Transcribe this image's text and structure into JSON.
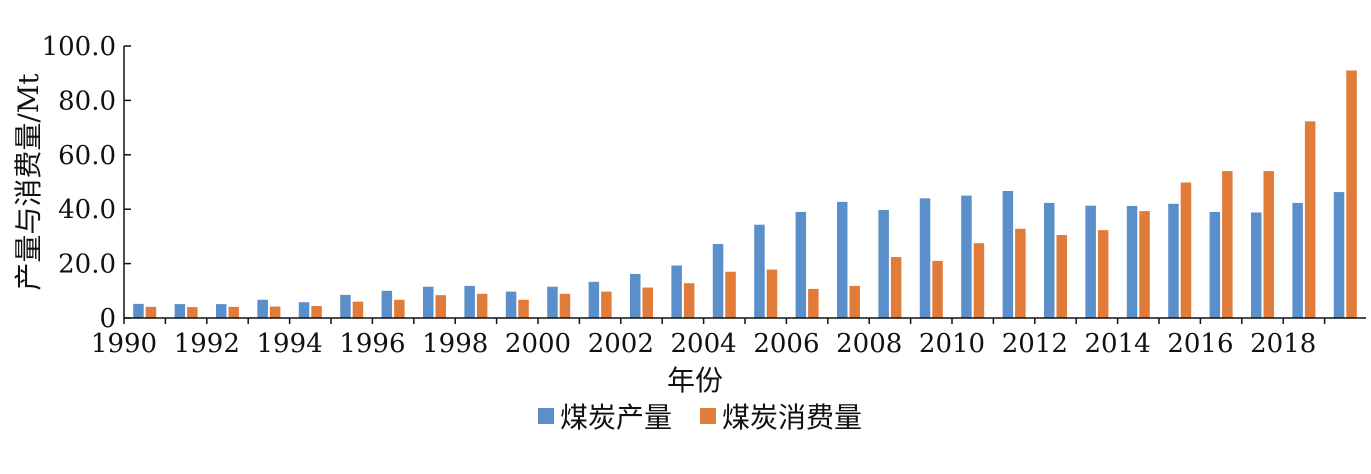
{
  "chart_data": {
    "type": "bar",
    "title": "",
    "xlabel": "年份",
    "ylabel": "产量与消费量/Mt",
    "ylim": [
      0,
      100
    ],
    "yticks": [
      "0",
      "20.0",
      "40.0",
      "60.0",
      "80.0",
      "100.0"
    ],
    "years": [
      1990,
      1991,
      1992,
      1993,
      1994,
      1995,
      1996,
      1997,
      1998,
      1999,
      2000,
      2001,
      2002,
      2003,
      2004,
      2005,
      2006,
      2007,
      2008,
      2009,
      2010,
      2011,
      2012,
      2013,
      2014,
      2015,
      2016,
      2017,
      2018,
      2019
    ],
    "xtick_labels": [
      "1990",
      "1992",
      "1994",
      "1996",
      "1998",
      "2000",
      "2002",
      "2004",
      "2006",
      "2008",
      "2010",
      "2012",
      "2014",
      "2016",
      "2018"
    ],
    "grid": false,
    "legend_position": "bottom",
    "series": [
      {
        "name": "煤炭产量",
        "color": "#5b8fc9",
        "values": [
          5.2,
          5.1,
          5.1,
          6.7,
          5.8,
          8.5,
          10.0,
          11.5,
          11.8,
          9.7,
          11.5,
          13.3,
          16.2,
          19.3,
          27.2,
          34.3,
          39.0,
          42.7,
          39.7,
          44.0,
          45.0,
          46.7,
          42.3,
          41.3,
          41.2,
          42.0,
          39.0,
          38.8,
          42.3,
          46.3
        ]
      },
      {
        "name": "煤炭消费量",
        "color": "#e07b39",
        "values": [
          4.1,
          4.0,
          4.1,
          4.2,
          4.4,
          6.0,
          6.7,
          8.4,
          8.9,
          6.7,
          8.9,
          9.7,
          11.2,
          12.8,
          17.0,
          17.8,
          10.7,
          11.8,
          22.4,
          21.0,
          27.5,
          32.8,
          30.5,
          32.3,
          39.3,
          49.8,
          54.0,
          54.0,
          72.3,
          91.0
        ]
      }
    ]
  }
}
